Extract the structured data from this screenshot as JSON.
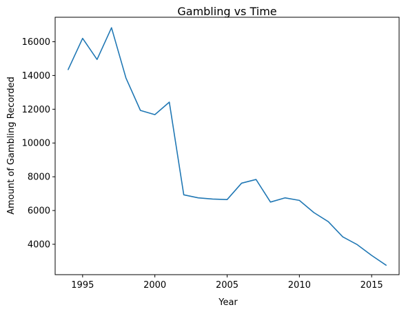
{
  "chart_data": {
    "type": "line",
    "title": "Gambling vs Time",
    "xlabel": "Year",
    "ylabel": "Amount of Gambling Recorded",
    "xlim": [
      1993.1,
      2016.9
    ],
    "ylim": [
      2200,
      17450
    ],
    "xticks": [
      1995,
      2000,
      2005,
      2010,
      2015
    ],
    "yticks": [
      4000,
      6000,
      8000,
      10000,
      12000,
      14000,
      16000
    ],
    "grid": false,
    "legend": "none",
    "series": [
      {
        "color": "#1f77b4",
        "x": [
          1994,
          1995,
          1996,
          1997,
          1998,
          1999,
          2000,
          2001,
          2002,
          2003,
          2004,
          2005,
          2006,
          2007,
          2008,
          2009,
          2010,
          2011,
          2012,
          2013,
          2014,
          2015,
          2016
        ],
        "y": [
          14350,
          16200,
          14950,
          16830,
          13850,
          11930,
          11680,
          12420,
          6930,
          6750,
          6680,
          6650,
          7620,
          7840,
          6500,
          6750,
          6600,
          5880,
          5340,
          4440,
          3980,
          3340,
          2760
        ]
      }
    ]
  }
}
